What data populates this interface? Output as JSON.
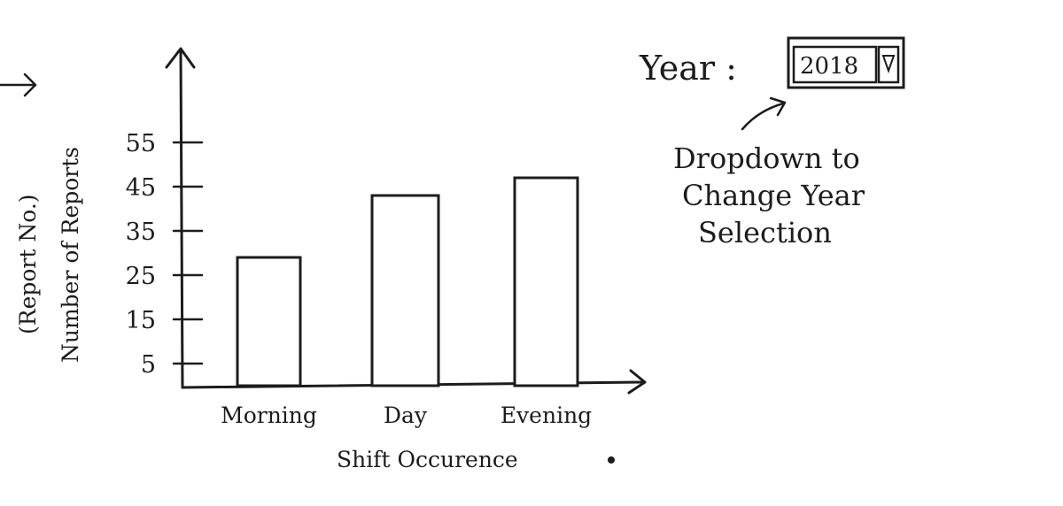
{
  "chart_data": {
    "type": "bar",
    "categories": [
      "Morning",
      "Day",
      "Evening"
    ],
    "values": [
      29,
      43,
      47
    ],
    "title": "",
    "xlabel": "Shift Occurence",
    "ylabel": "Number of Reports",
    "ylabel_note": "(Report No.)",
    "yticks": [
      5,
      15,
      25,
      35,
      45,
      55
    ],
    "ylim": [
      0,
      63
    ],
    "grid": false,
    "legend": "none"
  },
  "year_filter": {
    "label": "Year :",
    "selected": "2018",
    "dropdown_icon": "triangle-down-icon",
    "note": [
      "Dropdown to",
      "Change Year",
      "Selection"
    ]
  },
  "colors": {
    "ink": "#1c1c1c",
    "paper": "#ffffff"
  }
}
